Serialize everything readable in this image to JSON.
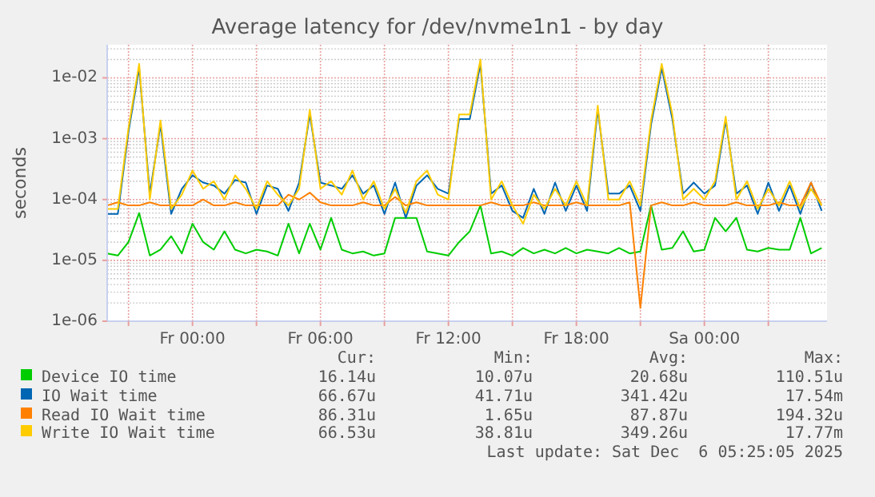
{
  "chart_data": {
    "type": "line",
    "title": "Average latency for /dev/nvme1n1 - by day",
    "ylabel": "seconds",
    "x": [
      "2025-12-04T20:00",
      "2025-12-04T20:30",
      "2025-12-04T21:00",
      "2025-12-04T21:30",
      "2025-12-04T22:00",
      "2025-12-04T22:30",
      "2025-12-04T23:00",
      "2025-12-04T23:30",
      "2025-12-05T00:00",
      "2025-12-05T00:30",
      "2025-12-05T01:00",
      "2025-12-05T01:30",
      "2025-12-05T02:00",
      "2025-12-05T02:30",
      "2025-12-05T03:00",
      "2025-12-05T03:30",
      "2025-12-05T04:00",
      "2025-12-05T04:30",
      "2025-12-05T05:00",
      "2025-12-05T05:30",
      "2025-12-05T06:00",
      "2025-12-05T06:30",
      "2025-12-05T07:00",
      "2025-12-05T07:30",
      "2025-12-05T08:00",
      "2025-12-05T08:30",
      "2025-12-05T09:00",
      "2025-12-05T09:30",
      "2025-12-05T10:00",
      "2025-12-05T10:30",
      "2025-12-05T11:00",
      "2025-12-05T11:30",
      "2025-12-05T12:00",
      "2025-12-05T12:30",
      "2025-12-05T13:00",
      "2025-12-05T13:30",
      "2025-12-05T14:00",
      "2025-12-05T14:30",
      "2025-12-05T15:00",
      "2025-12-05T15:30",
      "2025-12-05T16:00",
      "2025-12-05T16:30",
      "2025-12-05T17:00",
      "2025-12-05T17:30",
      "2025-12-05T18:00",
      "2025-12-05T18:30",
      "2025-12-05T19:00",
      "2025-12-05T19:30",
      "2025-12-05T20:00",
      "2025-12-05T20:30",
      "2025-12-05T21:00",
      "2025-12-05T21:30",
      "2025-12-05T22:00",
      "2025-12-05T22:30",
      "2025-12-05T23:00",
      "2025-12-05T23:30",
      "2025-12-06T00:00",
      "2025-12-06T00:30",
      "2025-12-06T01:00",
      "2025-12-06T01:30",
      "2025-12-06T02:00",
      "2025-12-06T02:30",
      "2025-12-06T03:00",
      "2025-12-06T03:30",
      "2025-12-06T04:00",
      "2025-12-06T04:30",
      "2025-12-06T05:00",
      "2025-12-06T05:30"
    ],
    "series": [
      {
        "name": "Device IO time",
        "color": "#00cc00",
        "values": [
          1.3e-05,
          1.2e-05,
          2e-05,
          6e-05,
          1.2e-05,
          1.5e-05,
          2.5e-05,
          1.3e-05,
          4e-05,
          2e-05,
          1.5e-05,
          3e-05,
          1.5e-05,
          1.3e-05,
          1.5e-05,
          1.4e-05,
          1.2e-05,
          4e-05,
          1.3e-05,
          4e-05,
          1.5e-05,
          5e-05,
          1.5e-05,
          1.3e-05,
          1.4e-05,
          1.2e-05,
          1.3e-05,
          5e-05,
          5e-05,
          5e-05,
          1.4e-05,
          1.3e-05,
          1.2e-05,
          2e-05,
          3e-05,
          8e-05,
          1.3e-05,
          1.4e-05,
          1.2e-05,
          1.6e-05,
          1.3e-05,
          1.5e-05,
          1.3e-05,
          1.6e-05,
          1.3e-05,
          1.5e-05,
          1.4e-05,
          1.3e-05,
          1.6e-05,
          1.3e-05,
          1.4e-05,
          8e-05,
          1.5e-05,
          1.6e-05,
          3e-05,
          1.4e-05,
          1.5e-05,
          5e-05,
          3e-05,
          5e-05,
          1.5e-05,
          1.4e-05,
          1.6e-05,
          1.5e-05,
          1.5e-05,
          5e-05,
          1.3e-05,
          1.6e-05
        ]
      },
      {
        "name": "IO Wait time",
        "color": "#0066b3",
        "values": [
          5.8e-05,
          5.8e-05,
          0.0013,
          0.0145,
          0.000125,
          0.0017,
          5.8e-05,
          0.00015,
          0.00025,
          0.00019,
          0.00017,
          0.000125,
          0.00021,
          0.00019,
          5.8e-05,
          0.00017,
          0.00015,
          6.5e-05,
          0.00019,
          0.0025,
          0.00019,
          0.00017,
          0.00015,
          0.00025,
          0.000125,
          0.00017,
          5.8e-05,
          0.00019,
          5e-05,
          0.00017,
          0.00025,
          0.00015,
          0.000125,
          0.0021,
          0.0021,
          0.017,
          0.000125,
          0.00017,
          6.5e-05,
          5e-05,
          0.00015,
          5.8e-05,
          0.00019,
          6.5e-05,
          0.00017,
          6.5e-05,
          0.003,
          0.000125,
          0.000125,
          0.00017,
          6.5e-05,
          0.0017,
          0.0145,
          0.0021,
          0.000125,
          0.00019,
          0.000125,
          0.00017,
          0.002,
          0.000125,
          0.00017,
          5.8e-05,
          0.00019,
          6.5e-05,
          0.00017,
          5.8e-05,
          0.00019,
          6.5e-05
        ]
      },
      {
        "name": "Read IO Wait time",
        "color": "#ff8000",
        "values": [
          8e-05,
          9e-05,
          8e-05,
          8e-05,
          9e-05,
          8e-05,
          8e-05,
          8e-05,
          8e-05,
          0.0001,
          8e-05,
          8e-05,
          9e-05,
          8e-05,
          8e-05,
          8e-05,
          8e-05,
          0.00012,
          0.0001,
          0.00013,
          9e-05,
          8e-05,
          8e-05,
          8e-05,
          9e-05,
          8e-05,
          8e-05,
          0.00011,
          8e-05,
          9e-05,
          8e-05,
          8e-05,
          8e-05,
          8e-05,
          8e-05,
          8e-05,
          9e-05,
          8e-05,
          8e-05,
          8e-05,
          9e-05,
          8e-05,
          8e-05,
          8e-05,
          9e-05,
          8e-05,
          8e-05,
          8e-05,
          8e-05,
          9e-05,
          1.65e-06,
          8e-05,
          9e-05,
          8e-05,
          8e-05,
          9e-05,
          8e-05,
          8e-05,
          8e-05,
          9e-05,
          8e-05,
          8e-05,
          8e-05,
          9e-05,
          8e-05,
          8e-05,
          0.00019,
          8e-05
        ]
      },
      {
        "name": "Write IO Wait time",
        "color": "#ffcc00",
        "values": [
          7e-05,
          7e-05,
          0.0015,
          0.017,
          0.0001,
          0.002,
          7e-05,
          0.00012,
          0.0003,
          0.00015,
          0.0002,
          0.0001,
          0.00025,
          0.00015,
          7e-05,
          0.0002,
          0.00012,
          8e-05,
          0.00015,
          0.003,
          0.00015,
          0.0002,
          0.00012,
          0.0003,
          0.0001,
          0.0002,
          7e-05,
          0.00015,
          6e-05,
          0.0002,
          0.0003,
          0.00012,
          0.0001,
          0.0025,
          0.0025,
          0.02,
          0.0001,
          0.0002,
          8e-05,
          4e-05,
          0.00012,
          7e-05,
          0.00015,
          8e-05,
          0.0002,
          8e-05,
          0.0035,
          0.0001,
          0.0001,
          0.0002,
          8e-05,
          0.002,
          0.017,
          0.0025,
          0.0001,
          0.00015,
          0.0001,
          0.0002,
          0.0023,
          0.0001,
          0.0002,
          7e-05,
          0.00015,
          8e-05,
          0.0002,
          7e-05,
          0.00015,
          8e-05
        ]
      }
    ],
    "xlim": [
      "2025-12-04T20:00",
      "2025-12-06T05:45"
    ],
    "xticks": [
      {
        "value": "2025-12-04T21:00",
        "label": null
      },
      {
        "value": "2025-12-05T00:00",
        "label": "Fr 00:00"
      },
      {
        "value": "2025-12-05T03:00",
        "label": null
      },
      {
        "value": "2025-12-05T06:00",
        "label": "Fr 06:00"
      },
      {
        "value": "2025-12-05T09:00",
        "label": null
      },
      {
        "value": "2025-12-05T12:00",
        "label": "Fr 12:00"
      },
      {
        "value": "2025-12-05T15:00",
        "label": null
      },
      {
        "value": "2025-12-05T18:00",
        "label": "Fr 18:00"
      },
      {
        "value": "2025-12-05T21:00",
        "label": null
      },
      {
        "value": "2025-12-06T00:00",
        "label": "Sa 00:00"
      },
      {
        "value": "2025-12-06T03:00",
        "label": null
      }
    ],
    "ylim": [
      1e-06,
      0.035
    ],
    "log": true,
    "yticks": [
      {
        "value": 1e-06,
        "label": "1e-06"
      },
      {
        "value": 1e-05,
        "label": "1e-05"
      },
      {
        "value": 0.0001,
        "label": "1e-04"
      },
      {
        "value": 0.001,
        "label": "1e-03"
      },
      {
        "value": 0.01,
        "label": "1e-02"
      }
    ],
    "grid": true,
    "legend": "bottom",
    "marker": "none",
    "line_style": "solid",
    "annotations": [
      "Cur:",
      "Min:",
      "Avg:",
      "Max:",
      "16.14u",
      "10.07u",
      "20.68u",
      "110.51u",
      "66.67u",
      "41.71u",
      "341.42u",
      "17.54m",
      "86.31u",
      "1.65u",
      "87.87u",
      "194.32u",
      "66.53u",
      "38.81u",
      "349.26u",
      "17.77m",
      "Last update: Sat Dec  6 05:25:05 2025"
    ]
  }
}
